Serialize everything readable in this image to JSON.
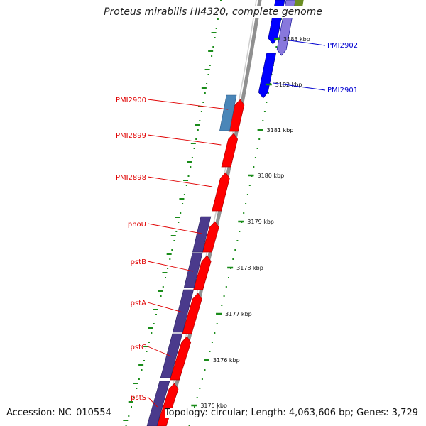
{
  "title": "Proteus mirabilis HI4320, complete genome",
  "footer": {
    "accession": "Accession: NC_010554",
    "summary": "Topology: circular; Length: 4,063,606 bp; Genes: 3,729"
  },
  "colors": {
    "forward_gene": "#ff0000",
    "forward_gene_edge": "#b00000",
    "reverse_gene": "#0000ff",
    "reverse_gene_light": "#8878dd",
    "track_cds": "#4a3a8c",
    "track_cds_light": "#4a86b8",
    "tick_green": "#1a8c1a",
    "label_red": "#e00000",
    "label_blue": "#0000d0",
    "backbone": "#909090",
    "olive": "#6b8e23"
  },
  "scale": {
    "unit": "kbp",
    "ticks": [
      "3175 kbp",
      "3176 kbp",
      "3177 kbp",
      "3178 kbp",
      "3179 kbp",
      "3180 kbp",
      "3181 kbp",
      "3182 kbp",
      "3183 kbp"
    ]
  },
  "genes_left": [
    "PMI2900",
    "PMI2899",
    "PMI2898",
    "phoU",
    "pstB",
    "pstA",
    "pstC",
    "pstS"
  ],
  "genes_right": [
    "PMI2902",
    "PMI2901"
  ]
}
